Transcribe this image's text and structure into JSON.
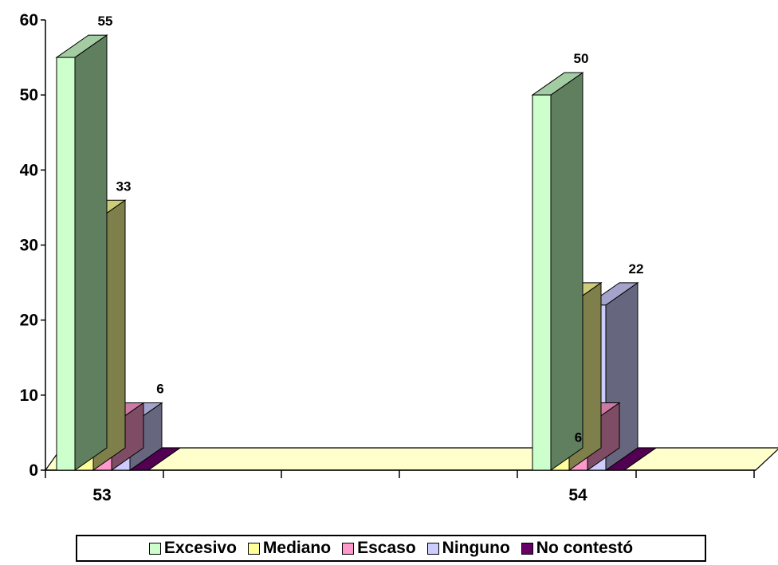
{
  "chart_data": {
    "type": "bar",
    "categories": [
      "53",
      "54"
    ],
    "series": [
      {
        "name": "Excesivo",
        "values": [
          55,
          50
        ],
        "color": "#CCFFCC",
        "side": "#5F7F5F",
        "top": "#A3CCA3"
      },
      {
        "name": "Mediano",
        "values": [
          33,
          22
        ],
        "color": "#FFFF99",
        "side": "#7F7F4C",
        "top": "#CCCC7A"
      },
      {
        "name": "Escaso",
        "values": [
          6,
          6
        ],
        "color": "#FF99CC",
        "side": "#7F4C66",
        "top": "#CC7AA3"
      },
      {
        "name": "Ninguno",
        "values": [
          6,
          22
        ],
        "color": "#CCCCFF",
        "side": "#66667F",
        "top": "#A3A3CC"
      },
      {
        "name": "No contestó",
        "values": [
          0,
          0
        ],
        "color": "#660066",
        "side": "#330033",
        "top": "#520052"
      }
    ],
    "data_labels": [
      {
        "category": "53",
        "series": "Excesivo",
        "text": "55"
      },
      {
        "category": "53",
        "series": "Mediano",
        "text": "33"
      },
      {
        "category": "53",
        "series": "Ninguno",
        "text": "6"
      },
      {
        "category": "54",
        "series": "Excesivo",
        "text": "50"
      },
      {
        "category": "54",
        "series": "Escaso",
        "text": "6"
      },
      {
        "category": "54",
        "series": "Ninguno",
        "text": "22"
      }
    ],
    "y_ticks": [
      0,
      10,
      20,
      30,
      40,
      50,
      60
    ],
    "ylim": [
      0,
      60
    ],
    "floor_color": "#FFFFCC",
    "legend_position": "bottom",
    "title": "",
    "xlabel": "",
    "ylabel": ""
  }
}
